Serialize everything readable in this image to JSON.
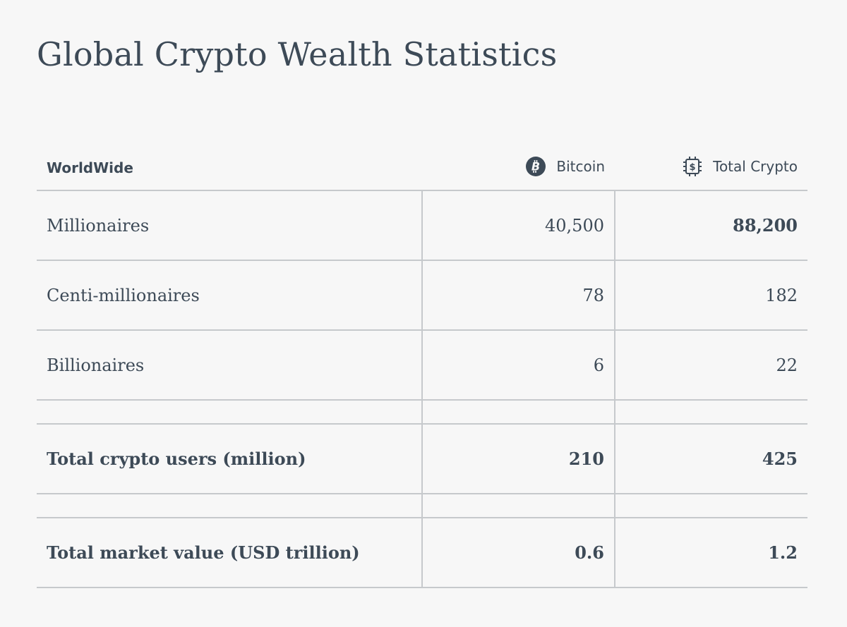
{
  "page": {
    "title": "Global Crypto Wealth Statistics"
  },
  "table": {
    "header": {
      "region": "WorldWide",
      "bitcoin": "Bitcoin",
      "total_crypto": "Total Crypto",
      "bitcoin_icon": "bitcoin-icon",
      "total_crypto_icon": "crypto-chip-icon"
    },
    "rows": [
      {
        "label": "Millionaires",
        "bitcoin": "40,500",
        "total_crypto": "88,200"
      },
      {
        "label": "Centi-millionaires",
        "bitcoin": "78",
        "total_crypto": "182"
      },
      {
        "label": "Billionaires",
        "bitcoin": "6",
        "total_crypto": "22"
      }
    ],
    "totals": [
      {
        "label": "Total crypto users (million)",
        "bitcoin": "210",
        "total_crypto": "425"
      },
      {
        "label": "Total market value (USD trillion)",
        "bitcoin": "0.6",
        "total_crypto": "1.2"
      }
    ]
  },
  "colors": {
    "text": "#3d4a57",
    "background": "#f7f7f7",
    "rule": "#c6c9cc"
  }
}
